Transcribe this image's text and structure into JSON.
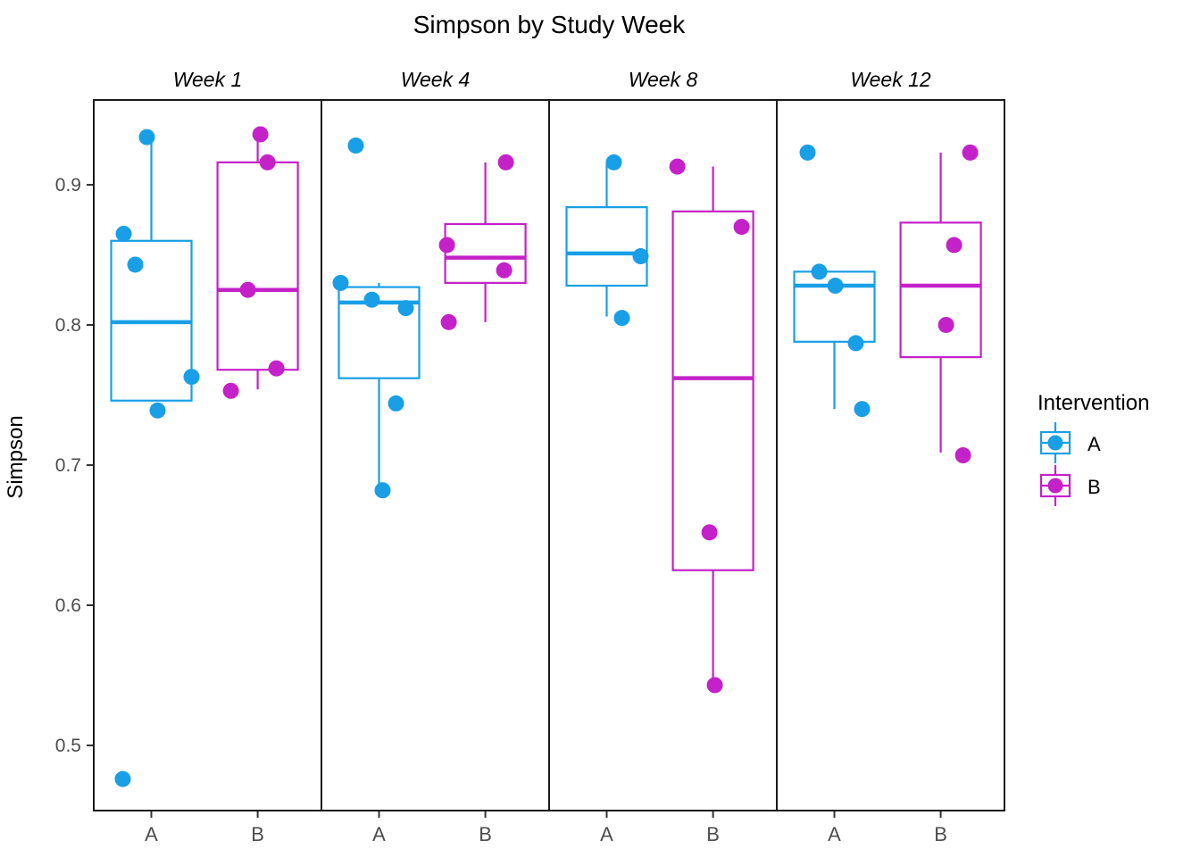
{
  "title": "Simpson by Study Week",
  "legend": {
    "title": "Intervention",
    "items": [
      {
        "label": "A",
        "color": "#189FE6"
      },
      {
        "label": "B",
        "color": "#C421C9"
      }
    ]
  },
  "chart_data": {
    "type": "boxplot",
    "title": "Simpson by Study Week",
    "xlabel": "",
    "ylabel": "Simpson",
    "legend_title": "Intervention",
    "facets": [
      "Week 1",
      "Week 4",
      "Week 8",
      "Week 12"
    ],
    "groups": [
      "A",
      "B"
    ],
    "x_tick_labels": [
      "A",
      "B"
    ],
    "colors": {
      "A": "#189FE6",
      "B": "#C421C9"
    },
    "axis_text_color": "#4D4D4D",
    "yticks": [
      0.5,
      0.6,
      0.7,
      0.8,
      0.9
    ],
    "ylim": [
      0.4535,
      0.9605
    ],
    "grid": false,
    "legend_position": "right",
    "series": [
      {
        "facet": "Week 1",
        "group": "A",
        "box": {
          "whisker_low": 0.746,
          "q1": 0.746,
          "median": 0.802,
          "q3": 0.86,
          "whisker_high": 0.934
        },
        "points": [
          {
            "v": 0.934,
            "dx": -5
          },
          {
            "v": 0.865,
            "dx": -31
          },
          {
            "v": 0.843,
            "dx": -18
          },
          {
            "v": 0.763,
            "dx": 45
          },
          {
            "v": 0.739,
            "dx": 7
          },
          {
            "v": 0.476,
            "dx": -32
          }
        ]
      },
      {
        "facet": "Week 1",
        "group": "B",
        "box": {
          "whisker_low": 0.754,
          "q1": 0.768,
          "median": 0.825,
          "q3": 0.916,
          "whisker_high": 0.936
        },
        "points": [
          {
            "v": 0.936,
            "dx": 3
          },
          {
            "v": 0.916,
            "dx": 11
          },
          {
            "v": 0.825,
            "dx": -11
          },
          {
            "v": 0.769,
            "dx": 21
          },
          {
            "v": 0.753,
            "dx": -30
          }
        ]
      },
      {
        "facet": "Week 4",
        "group": "A",
        "box": {
          "whisker_low": 0.682,
          "q1": 0.762,
          "median": 0.816,
          "q3": 0.827,
          "whisker_high": 0.83
        },
        "points": [
          {
            "v": 0.928,
            "dx": -26
          },
          {
            "v": 0.83,
            "dx": -43
          },
          {
            "v": 0.818,
            "dx": -8
          },
          {
            "v": 0.812,
            "dx": 30
          },
          {
            "v": 0.744,
            "dx": 19
          },
          {
            "v": 0.682,
            "dx": 4
          }
        ]
      },
      {
        "facet": "Week 4",
        "group": "B",
        "box": {
          "whisker_low": 0.802,
          "q1": 0.83,
          "median": 0.848,
          "q3": 0.872,
          "whisker_high": 0.916
        },
        "points": [
          {
            "v": 0.916,
            "dx": 23
          },
          {
            "v": 0.857,
            "dx": -43
          },
          {
            "v": 0.839,
            "dx": 21
          },
          {
            "v": 0.802,
            "dx": -41
          }
        ]
      },
      {
        "facet": "Week 8",
        "group": "A",
        "box": {
          "whisker_low": 0.806,
          "q1": 0.828,
          "median": 0.851,
          "q3": 0.884,
          "whisker_high": 0.916
        },
        "points": [
          {
            "v": 0.916,
            "dx": 8
          },
          {
            "v": 0.849,
            "dx": 38
          },
          {
            "v": 0.805,
            "dx": 17
          }
        ]
      },
      {
        "facet": "Week 8",
        "group": "B",
        "box": {
          "whisker_low": 0.543,
          "q1": 0.625,
          "median": 0.762,
          "q3": 0.881,
          "whisker_high": 0.913
        },
        "points": [
          {
            "v": 0.913,
            "dx": -40
          },
          {
            "v": 0.87,
            "dx": 32
          },
          {
            "v": 0.652,
            "dx": -4
          },
          {
            "v": 0.543,
            "dx": 2
          }
        ]
      },
      {
        "facet": "Week 12",
        "group": "A",
        "box": {
          "whisker_low": 0.74,
          "q1": 0.788,
          "median": 0.828,
          "q3": 0.838,
          "whisker_high": 0.838
        },
        "points": [
          {
            "v": 0.923,
            "dx": -30
          },
          {
            "v": 0.838,
            "dx": -17
          },
          {
            "v": 0.828,
            "dx": 1
          },
          {
            "v": 0.787,
            "dx": 24
          },
          {
            "v": 0.74,
            "dx": 31
          }
        ]
      },
      {
        "facet": "Week 12",
        "group": "B",
        "box": {
          "whisker_low": 0.709,
          "q1": 0.777,
          "median": 0.828,
          "q3": 0.873,
          "whisker_high": 0.923
        },
        "points": [
          {
            "v": 0.923,
            "dx": 33
          },
          {
            "v": 0.857,
            "dx": 15
          },
          {
            "v": 0.8,
            "dx": 6
          },
          {
            "v": 0.707,
            "dx": 25
          }
        ]
      }
    ]
  }
}
